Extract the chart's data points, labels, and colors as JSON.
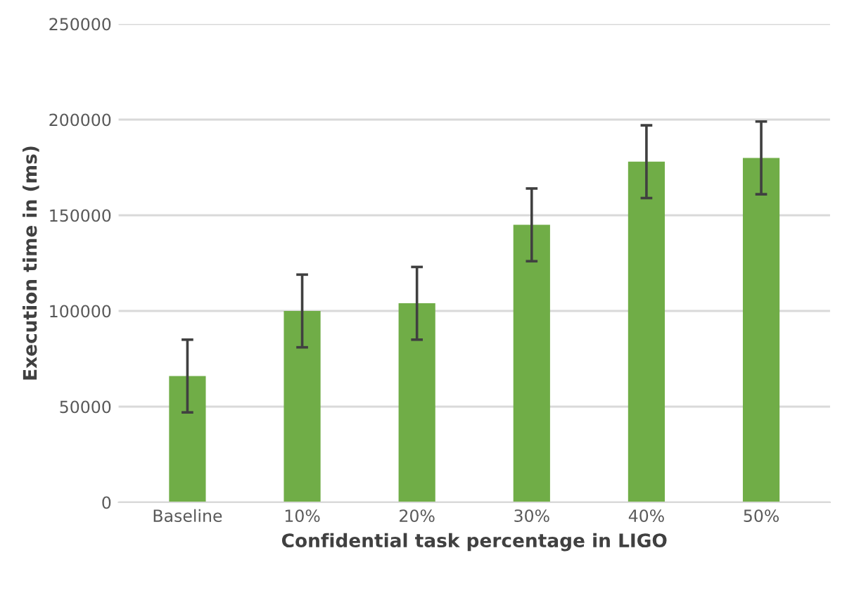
{
  "chart_data": {
    "type": "bar",
    "xlabel": "Confidential task percentage in LIGO",
    "ylabel": "Execution time in (ms)",
    "categories": [
      "Baseline",
      "10%",
      "20%",
      "30%",
      "40%",
      "50%"
    ],
    "values": [
      66000,
      100000,
      104000,
      145000,
      178000,
      180000
    ],
    "errors": [
      19000,
      19000,
      19000,
      19000,
      19000,
      19000
    ],
    "color": "#70ad47",
    "ylim": [
      0,
      250000
    ],
    "yticks": [
      0,
      50000,
      100000,
      150000,
      200000,
      250000
    ],
    "grid": "y"
  }
}
